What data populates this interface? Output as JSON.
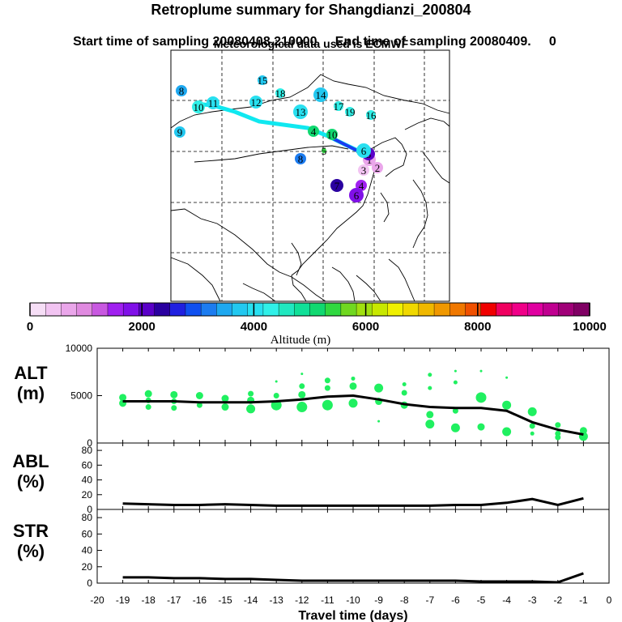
{
  "header": {
    "title": "Retroplume summary for Shangdianzi_200804",
    "start_label": "Start time of sampling 20080408.210000",
    "end_label": "End time of sampling 20080409.",
    "end_suffix": "0",
    "met_label": "Meteorological data used is ECMWF"
  },
  "colorbar": {
    "colors": [
      "#f6def6",
      "#f2c4f2",
      "#eaa6ea",
      "#e08ae0",
      "#c858e0",
      "#a020f0",
      "#8010e8",
      "#5a00c8",
      "#2a00a0",
      "#2020e0",
      "#1050f0",
      "#1c7cf0",
      "#1ea8f0",
      "#22c8f0",
      "#28e0f0",
      "#30f0e8",
      "#20e8c0",
      "#10e098",
      "#10d870",
      "#30d840",
      "#70d820",
      "#a0e010",
      "#c8e800",
      "#f0f000",
      "#f0d800",
      "#f0b800",
      "#f09800",
      "#f07800",
      "#f05000",
      "#f00000",
      "#f00060",
      "#f00088",
      "#e000a0",
      "#c00090",
      "#a00078",
      "#800064"
    ],
    "tick_labels": [
      "0",
      "2000",
      "4000",
      "6000",
      "8000",
      "10000"
    ],
    "label": "Altitude (m)"
  },
  "map": {
    "plume_points": [
      {
        "label": "1",
        "alt": 800
      },
      {
        "label": "2",
        "alt": 600
      },
      {
        "label": "3",
        "alt": 500
      },
      {
        "label": "4",
        "alt": 1600
      },
      {
        "label": "5",
        "alt": 2200
      },
      {
        "label": "6",
        "alt": 1700
      },
      {
        "label": "7",
        "alt": 2300
      },
      {
        "label": "8",
        "alt": 3200
      },
      {
        "label": "8",
        "alt": 3500
      },
      {
        "label": "9",
        "alt": 3800
      },
      {
        "label": "10",
        "alt": 4200
      },
      {
        "label": "11",
        "alt": 4000
      },
      {
        "label": "12",
        "alt": 4000
      },
      {
        "label": "13",
        "alt": 3900
      },
      {
        "label": "14",
        "alt": 3700
      },
      {
        "label": "15",
        "alt": 3800
      },
      {
        "label": "16",
        "alt": 4200
      },
      {
        "label": "17",
        "alt": 4400
      },
      {
        "label": "18",
        "alt": 4300
      },
      {
        "label": "19",
        "alt": 4400
      },
      {
        "label": "4",
        "alt": 5200
      },
      {
        "label": "10",
        "alt": 5000
      },
      {
        "label": "5",
        "alt": 5500
      },
      {
        "label": "6",
        "alt": 3900
      }
    ]
  },
  "chart_data": [
    {
      "type": "scatter",
      "panel": "ALT",
      "ylabel_line1": "ALT",
      "ylabel_line2": "(m)",
      "ylim": [
        0,
        10000
      ],
      "yticks": [
        "0",
        "5000",
        "10000"
      ],
      "xlim": [
        -20,
        0
      ],
      "mean_line": {
        "x": [
          -19,
          -18,
          -17,
          -16,
          -15,
          -14,
          -13,
          -12,
          -11,
          -10,
          -9,
          -8,
          -7,
          -6,
          -5,
          -4,
          -3,
          -2,
          -1
        ],
        "y": [
          4400,
          4400,
          4400,
          4300,
          4300,
          4300,
          4400,
          4600,
          4900,
          5000,
          4600,
          4100,
          3800,
          3700,
          3700,
          3400,
          2200,
          1400,
          900
        ]
      },
      "points": [
        {
          "x": -19,
          "y": 4800,
          "s": 4
        },
        {
          "x": -19,
          "y": 4200,
          "s": 4
        },
        {
          "x": -18,
          "y": 5200,
          "s": 4
        },
        {
          "x": -18,
          "y": 4500,
          "s": 3
        },
        {
          "x": -18,
          "y": 3800,
          "s": 3
        },
        {
          "x": -17,
          "y": 5100,
          "s": 4
        },
        {
          "x": -17,
          "y": 4400,
          "s": 3
        },
        {
          "x": -17,
          "y": 3700,
          "s": 3
        },
        {
          "x": -16,
          "y": 5000,
          "s": 4
        },
        {
          "x": -16,
          "y": 4000,
          "s": 3
        },
        {
          "x": -15,
          "y": 4700,
          "s": 4
        },
        {
          "x": -15,
          "y": 3800,
          "s": 4
        },
        {
          "x": -14,
          "y": 5200,
          "s": 3
        },
        {
          "x": -14,
          "y": 4500,
          "s": 4
        },
        {
          "x": -14,
          "y": 3600,
          "s": 5
        },
        {
          "x": -13,
          "y": 6500,
          "s": 1
        },
        {
          "x": -13,
          "y": 5000,
          "s": 3
        },
        {
          "x": -13,
          "y": 4000,
          "s": 6
        },
        {
          "x": -12,
          "y": 7300,
          "s": 1
        },
        {
          "x": -12,
          "y": 6000,
          "s": 3
        },
        {
          "x": -12,
          "y": 5100,
          "s": 4
        },
        {
          "x": -12,
          "y": 3800,
          "s": 6
        },
        {
          "x": -11,
          "y": 6600,
          "s": 3
        },
        {
          "x": -11,
          "y": 5800,
          "s": 3
        },
        {
          "x": -11,
          "y": 4000,
          "s": 6
        },
        {
          "x": -10,
          "y": 6800,
          "s": 2
        },
        {
          "x": -10,
          "y": 6000,
          "s": 4
        },
        {
          "x": -10,
          "y": 4200,
          "s": 5
        },
        {
          "x": -9,
          "y": 5800,
          "s": 5
        },
        {
          "x": -9,
          "y": 4400,
          "s": 4
        },
        {
          "x": -9,
          "y": 2300,
          "s": 1
        },
        {
          "x": -8,
          "y": 6200,
          "s": 2
        },
        {
          "x": -8,
          "y": 5300,
          "s": 3
        },
        {
          "x": -8,
          "y": 4000,
          "s": 4
        },
        {
          "x": -7,
          "y": 7200,
          "s": 2
        },
        {
          "x": -7,
          "y": 5800,
          "s": 2
        },
        {
          "x": -7,
          "y": 3000,
          "s": 4
        },
        {
          "x": -7,
          "y": 2000,
          "s": 5
        },
        {
          "x": -6,
          "y": 7600,
          "s": 1
        },
        {
          "x": -6,
          "y": 6400,
          "s": 2
        },
        {
          "x": -6,
          "y": 3400,
          "s": 3
        },
        {
          "x": -6,
          "y": 1600,
          "s": 5
        },
        {
          "x": -5,
          "y": 7600,
          "s": 1
        },
        {
          "x": -5,
          "y": 4800,
          "s": 6
        },
        {
          "x": -5,
          "y": 1700,
          "s": 4
        },
        {
          "x": -4,
          "y": 6900,
          "s": 1
        },
        {
          "x": -4,
          "y": 4000,
          "s": 5
        },
        {
          "x": -4,
          "y": 1200,
          "s": 5
        },
        {
          "x": -3,
          "y": 3300,
          "s": 5
        },
        {
          "x": -3,
          "y": 1800,
          "s": 3
        },
        {
          "x": -3,
          "y": 1000,
          "s": 2
        },
        {
          "x": -2,
          "y": 1900,
          "s": 3
        },
        {
          "x": -2,
          "y": 1000,
          "s": 3
        },
        {
          "x": -2,
          "y": 600,
          "s": 3
        },
        {
          "x": -1,
          "y": 1300,
          "s": 4
        },
        {
          "x": -1,
          "y": 700,
          "s": 5
        }
      ]
    },
    {
      "type": "line",
      "panel": "ABL",
      "ylabel_line1": "ABL",
      "ylabel_line2": "(%)",
      "ylim": [
        0,
        90
      ],
      "yticks": [
        "0",
        "20",
        "40",
        "60",
        "80"
      ],
      "xlim": [
        -20,
        0
      ],
      "x": [
        -19,
        -18,
        -17,
        -16,
        -15,
        -14,
        -13,
        -12,
        -11,
        -10,
        -9,
        -8,
        -7,
        -6,
        -5,
        -4,
        -3,
        -2,
        -1
      ],
      "y": [
        8,
        7,
        6,
        6,
        7,
        6,
        5,
        5,
        5,
        5,
        5,
        5,
        5,
        6,
        6,
        9,
        14,
        6,
        15
      ]
    },
    {
      "type": "line",
      "panel": "STR",
      "ylabel_line1": "STR",
      "ylabel_line2": "(%)",
      "ylim": [
        0,
        90
      ],
      "yticks": [
        "0",
        "20",
        "40",
        "60",
        "80"
      ],
      "xlim": [
        -20,
        0
      ],
      "x": [
        -19,
        -18,
        -17,
        -16,
        -15,
        -14,
        -13,
        -12,
        -11,
        -10,
        -9,
        -8,
        -7,
        -6,
        -5,
        -4,
        -3,
        -2,
        -1
      ],
      "y": [
        7,
        7,
        6,
        6,
        5,
        5,
        4,
        3,
        3,
        3,
        3,
        3,
        3,
        3,
        2,
        2,
        2,
        1,
        12
      ]
    }
  ],
  "xaxis": {
    "ticks": [
      "-20",
      "-19",
      "-18",
      "-17",
      "-16",
      "-15",
      "-14",
      "-13",
      "-12",
      "-11",
      "-10",
      "-9",
      "-8",
      "-7",
      "-6",
      "-5",
      "-4",
      "-3",
      "-2",
      "-1",
      "0"
    ],
    "label": "Travel time (days)"
  }
}
